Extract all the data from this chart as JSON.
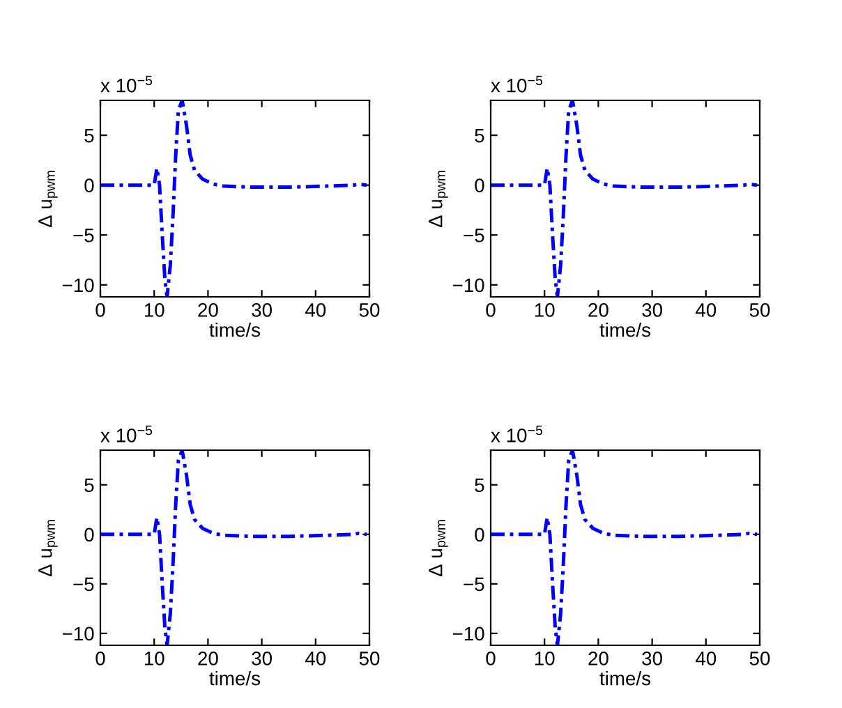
{
  "chart_data": [
    {
      "type": "line",
      "xlabel": "time/s",
      "ylabel": "Δ u$_{pwm}$",
      "annotations": [
        "x 10$^{−5}$"
      ],
      "x": [
        0,
        5,
        10,
        10.5,
        11,
        11.5,
        12,
        12.4,
        13,
        13.5,
        14,
        14.5,
        15.2,
        16,
        16.7,
        17.5,
        19,
        21,
        23,
        28,
        35,
        42,
        47,
        48,
        49.5
      ],
      "series": [
        {
          "color": "#0000ff",
          "values": [
            0,
            0,
            0,
            1.7,
            0,
            -5,
            -9.5,
            -11.2,
            -8,
            -3,
            3,
            7.5,
            8.5,
            6,
            3,
            1.5,
            0.6,
            0.1,
            -0.1,
            -0.2,
            -0.2,
            -0.1,
            0,
            0.1,
            0
          ]
        }
      ],
      "xlim": [
        0,
        50
      ],
      "ylim": [
        -11.2,
        8.5
      ],
      "xticks": [
        0,
        10,
        20,
        30,
        40,
        50
      ],
      "yticks": [
        -10,
        -5,
        0,
        5
      ],
      "line_style": "dashdot",
      "grid": false,
      "legend": false
    },
    {
      "type": "line",
      "xlabel": "time/s",
      "ylabel": "Δ u$_{pwm}$",
      "annotations": [
        "x 10$^{−5}$"
      ],
      "x": [
        0,
        5,
        10,
        10.5,
        11,
        11.5,
        12,
        12.4,
        13,
        13.5,
        14,
        14.5,
        15.2,
        16,
        16.7,
        17.5,
        19,
        21,
        23,
        28,
        35,
        42,
        47,
        48,
        49.5
      ],
      "series": [
        {
          "color": "#0000ff",
          "values": [
            0,
            0,
            0,
            1.7,
            0,
            -5,
            -9.5,
            -11.2,
            -8,
            -3,
            3,
            7.5,
            8.5,
            6,
            3,
            1.5,
            0.6,
            0.1,
            -0.1,
            -0.2,
            -0.2,
            -0.1,
            0,
            0.1,
            0
          ]
        }
      ],
      "xlim": [
        0,
        50
      ],
      "ylim": [
        -11.2,
        8.5
      ],
      "xticks": [
        0,
        10,
        20,
        30,
        40,
        50
      ],
      "yticks": [
        -10,
        -5,
        0,
        5
      ],
      "line_style": "dashdot",
      "grid": false,
      "legend": false
    },
    {
      "type": "line",
      "xlabel": "time/s",
      "ylabel": "Δ u$_{pwm}$",
      "annotations": [
        "x 10$^{−5}$"
      ],
      "x": [
        0,
        5,
        10,
        10.5,
        11,
        11.5,
        12,
        12.4,
        13,
        13.5,
        14,
        14.5,
        15.2,
        16,
        16.7,
        17.5,
        19,
        21,
        23,
        28,
        35,
        42,
        47,
        48,
        49.5
      ],
      "series": [
        {
          "color": "#0000ff",
          "values": [
            0,
            0,
            0,
            1.7,
            0,
            -5,
            -9.5,
            -11.2,
            -8,
            -3,
            3,
            7.5,
            8.5,
            6,
            3,
            1.5,
            0.6,
            0.1,
            -0.1,
            -0.2,
            -0.2,
            -0.1,
            0,
            0.1,
            0
          ]
        }
      ],
      "xlim": [
        0,
        50
      ],
      "ylim": [
        -11.2,
        8.5
      ],
      "xticks": [
        0,
        10,
        20,
        30,
        40,
        50
      ],
      "yticks": [
        -10,
        -5,
        0,
        5
      ],
      "line_style": "dashdot",
      "grid": false,
      "legend": false
    },
    {
      "type": "line",
      "xlabel": "time/s",
      "ylabel": "Δ u$_{pwm}$",
      "annotations": [
        "x 10$^{−5}$"
      ],
      "x": [
        0,
        5,
        10,
        10.5,
        11,
        11.5,
        12,
        12.4,
        13,
        13.5,
        14,
        14.5,
        15.2,
        16,
        16.7,
        17.5,
        19,
        21,
        23,
        28,
        35,
        42,
        47,
        48,
        49.5
      ],
      "series": [
        {
          "color": "#0000ff",
          "values": [
            0,
            0,
            0,
            1.7,
            0,
            -5,
            -9.5,
            -11.2,
            -8,
            -3,
            3,
            7.5,
            8.5,
            6,
            3,
            1.5,
            0.6,
            0.1,
            -0.1,
            -0.2,
            -0.2,
            -0.1,
            0,
            0.1,
            0
          ]
        }
      ],
      "xlim": [
        0,
        50
      ],
      "ylim": [
        -11.2,
        8.5
      ],
      "xticks": [
        0,
        10,
        20,
        30,
        40,
        50
      ],
      "yticks": [
        -10,
        -5,
        0,
        5
      ],
      "line_style": "dashdot",
      "grid": false,
      "legend": false
    }
  ]
}
